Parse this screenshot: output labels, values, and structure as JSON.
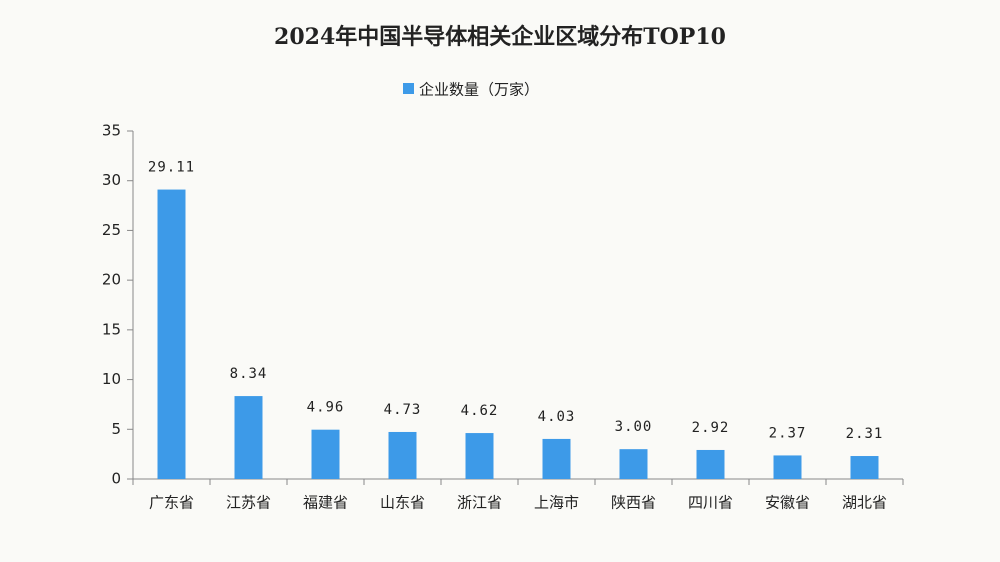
{
  "chart_data": {
    "type": "bar",
    "title": "2024年中国半导体相关企业区域分布TOP10",
    "categories": [
      "广东省",
      "江苏省",
      "福建省",
      "山东省",
      "浙江省",
      "上海市",
      "陕西省",
      "四川省",
      "安徽省",
      "湖北省"
    ],
    "series": [
      {
        "name": "企业数量（万家）",
        "color": "#3d9ae8",
        "values": [
          29.11,
          8.34,
          4.96,
          4.73,
          4.62,
          4.03,
          3.0,
          2.92,
          2.37,
          2.31
        ],
        "value_labels": [
          "29.11",
          "8.34",
          "4.96",
          "4.73",
          "4.62",
          "4.03",
          "3.00",
          "2.92",
          "2.37",
          "2.31"
        ]
      }
    ],
    "ylim": [
      0,
      35
    ],
    "yticks": [
      0,
      5,
      10,
      15,
      20,
      25,
      30,
      35
    ],
    "grid": false
  }
}
